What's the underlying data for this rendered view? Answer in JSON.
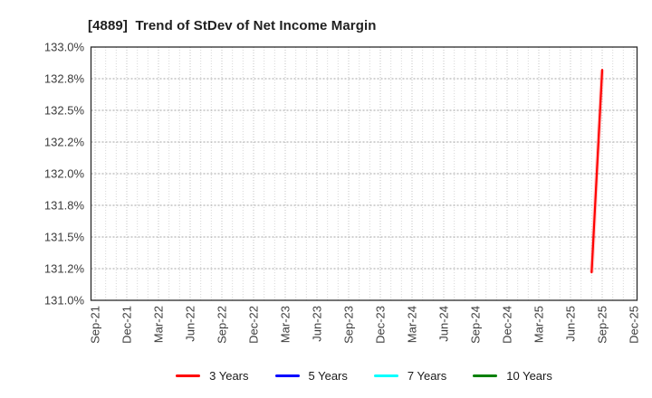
{
  "title": "[4889]  Trend of StDev of Net Income Margin",
  "chart_data": {
    "type": "line",
    "title": "[4889]  Trend of StDev of Net Income Margin",
    "xlabel": "",
    "ylabel": "",
    "ylim": [
      131.0,
      133.0
    ],
    "grid": true,
    "legend_position": "bottom",
    "y_ticks": [
      {
        "value": 131.0,
        "label": "131.0%"
      },
      {
        "value": 131.25,
        "label": "131.2%"
      },
      {
        "value": 131.5,
        "label": "131.5%"
      },
      {
        "value": 131.75,
        "label": "131.8%"
      },
      {
        "value": 132.0,
        "label": "132.0%"
      },
      {
        "value": 132.25,
        "label": "132.2%"
      },
      {
        "value": 132.5,
        "label": "132.5%"
      },
      {
        "value": 132.75,
        "label": "132.8%"
      },
      {
        "value": 133.0,
        "label": "133.0%"
      }
    ],
    "x_tick_labels": [
      "Sep-21",
      "Dec-21",
      "Mar-22",
      "Jun-22",
      "Sep-22",
      "Dec-22",
      "Mar-23",
      "Jun-23",
      "Sep-23",
      "Dec-23",
      "Mar-24",
      "Jun-24",
      "Sep-24",
      "Dec-24",
      "Mar-25",
      "Jun-25",
      "Sep-25",
      "Dec-25"
    ],
    "x_minor_unit": "month",
    "series": [
      {
        "name": "3 Years",
        "color": "#ff0000",
        "points": [
          {
            "x": "Aug-25",
            "y": 131.22
          },
          {
            "x": "Sep-25",
            "y": 132.82
          }
        ]
      },
      {
        "name": "5 Years",
        "color": "#0000ff",
        "points": []
      },
      {
        "name": "7 Years",
        "color": "#00ffff",
        "points": []
      },
      {
        "name": "10 Years",
        "color": "#008000",
        "points": []
      }
    ]
  },
  "colors": {
    "plot_border": "#2b2b2b",
    "h_gridline": "#a3a3a3",
    "v_gridline_major": "#c3c3c3",
    "v_gridline_minor": "#d7d7d7",
    "tick_label": "#3c3c3c",
    "title_text": "#1f1f1f",
    "background": "#ffffff"
  }
}
